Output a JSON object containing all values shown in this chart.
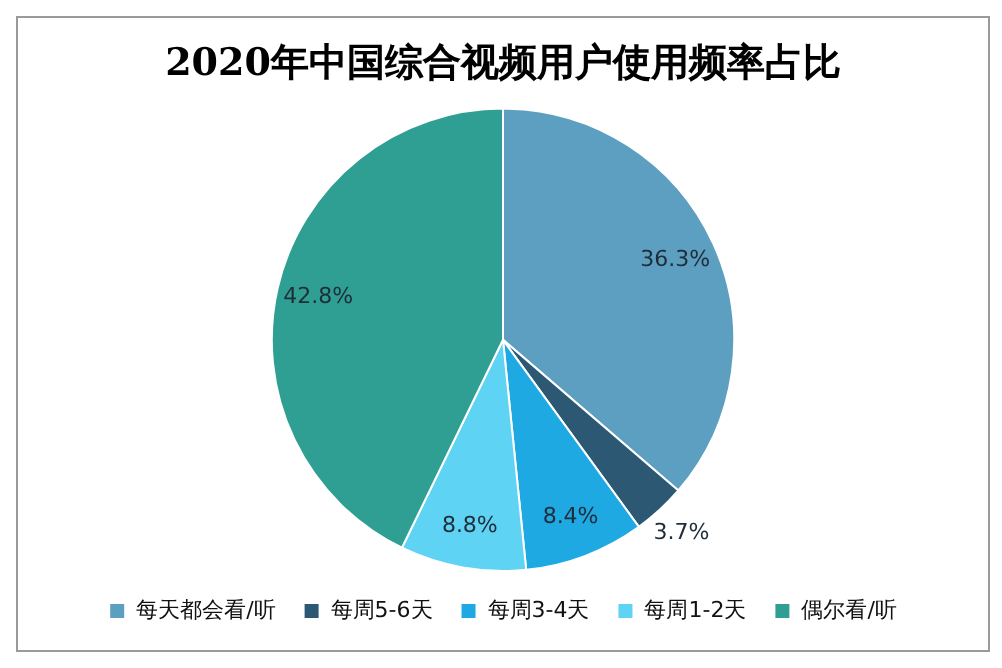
{
  "chart_data": {
    "type": "pie",
    "title": "2020年中国综合视频用户使用频率占比",
    "categories": [
      "每天都会看/听",
      "每周5-6天",
      "每周3-4天",
      "每周1-2天",
      "偶尔看/听"
    ],
    "values": [
      36.3,
      3.7,
      8.4,
      8.8,
      42.8
    ],
    "colors": [
      "#5d9fc0",
      "#2c5874",
      "#1fa9e3",
      "#5fd3f3",
      "#2f9f93"
    ],
    "value_labels": [
      "36.3%",
      "3.7%",
      "8.4%",
      "8.8%",
      "42.8%"
    ],
    "legend": "bottom"
  }
}
